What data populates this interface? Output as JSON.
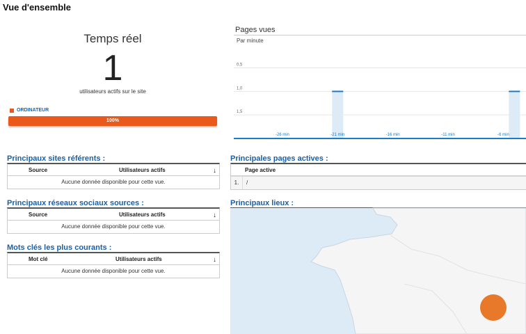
{
  "page_title": "Vue d'ensemble",
  "realtime": {
    "title": "Temps réel",
    "count": "1",
    "caption": "utilisateurs actifs sur le site",
    "device_label": "ORDINATEUR",
    "device_percent_label": "100%",
    "device_share": 1.0,
    "device_color": "#e8591b"
  },
  "pageviews": {
    "title": "Pages vues",
    "subtitle": "Par minute",
    "y_ticks": [
      "1,5",
      "1,0",
      "0,5"
    ],
    "x_ticks": [
      "-26 min",
      "-21 min",
      "-16 min",
      "-11 min",
      "-6 min"
    ]
  },
  "chart_data": {
    "type": "bar",
    "title": "Pages vues",
    "subtitle": "Par minute",
    "x": [
      -30,
      -29,
      -28,
      -27,
      -26,
      -25,
      -24,
      -23,
      -22,
      -21,
      -20,
      -19,
      -18,
      -17,
      -16,
      -15,
      -14,
      -13,
      -12,
      -11,
      -10,
      -9,
      -8,
      -7,
      -6,
      -5,
      -4
    ],
    "values": [
      0,
      0,
      0,
      0,
      0,
      0,
      0,
      0,
      0,
      1,
      0,
      0,
      0,
      0,
      0,
      0,
      0,
      0,
      0,
      0,
      0,
      0,
      0,
      0,
      0,
      1,
      0
    ],
    "ylim": [
      0,
      1.7
    ],
    "y_ticks": [
      0.5,
      1.0,
      1.5
    ],
    "x_tick_values": [
      -26,
      -21,
      -16,
      -11,
      -6
    ],
    "xlabel": "",
    "ylabel": "",
    "grid": true,
    "line_color": "#1a7bc9",
    "fill_color": "#dcebf6"
  },
  "referrers": {
    "title": "Principaux sites référents :",
    "col_source": "Source",
    "col_users": "Utilisateurs actifs",
    "empty": "Aucune donnée disponible pour cette vue."
  },
  "social": {
    "title": "Principaux réseaux sociaux sources :",
    "col_source": "Source",
    "col_users": "Utilisateurs actifs",
    "empty": "Aucune donnée disponible pour cette vue."
  },
  "keywords": {
    "title": "Mots clés les plus courants :",
    "col_keyword": "Mot clé",
    "col_users": "Utilisateurs actifs",
    "empty": "Aucune donnée disponible pour cette vue."
  },
  "active_pages": {
    "title": "Principales pages actives :",
    "col_page": "Page active",
    "rows": [
      {
        "index": "1.",
        "path": "/"
      }
    ]
  },
  "locations": {
    "title": "Principaux lieux :",
    "water_color": "#dcebf6",
    "land_color": "#f5f5f5",
    "marker_color": "#e8792b"
  }
}
